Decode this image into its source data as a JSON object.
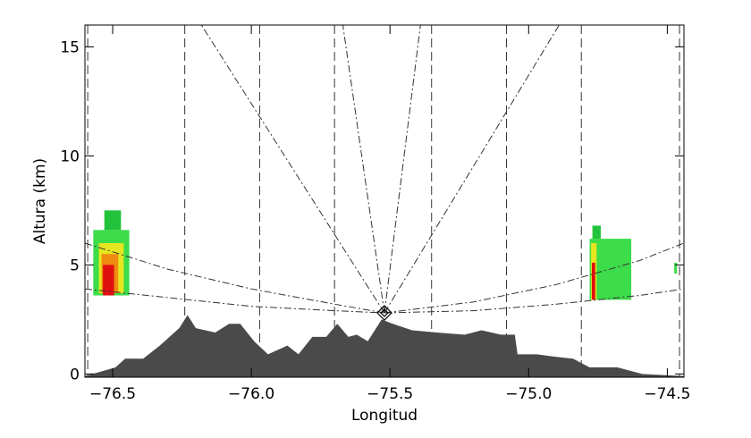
{
  "chart_data": {
    "type": "area",
    "x_label": "Longitud",
    "y_label": "Altura (km)",
    "xlim": [
      -76.6,
      -74.44
    ],
    "ylim": [
      -0.15,
      16
    ],
    "xticks": [
      {
        "value": -76.5,
        "label": "−76.5"
      },
      {
        "value": -76.0,
        "label": "−76.0"
      },
      {
        "value": -75.5,
        "label": "−75.5"
      },
      {
        "value": -75.0,
        "label": "−75.0"
      },
      {
        "value": -74.5,
        "label": "−74.5"
      }
    ],
    "yticks": [
      0,
      5,
      10,
      15
    ],
    "terrain": {
      "color": "#4a4a4a",
      "x": [
        -76.6,
        -76.49,
        -76.455,
        -76.39,
        -76.33,
        -76.26,
        -76.23,
        -76.2,
        -76.13,
        -76.08,
        -76.04,
        -75.99,
        -75.94,
        -75.87,
        -75.83,
        -75.78,
        -75.73,
        -75.69,
        -75.65,
        -75.62,
        -75.58,
        -75.55,
        -75.53,
        -75.49,
        -75.42,
        -75.33,
        -75.23,
        -75.17,
        -75.1,
        -75.05,
        -75.04,
        -74.97,
        -74.91,
        -74.84,
        -74.78,
        -74.68,
        -74.59,
        -74.44
      ],
      "values": [
        -0.1,
        0.3,
        0.7,
        0.7,
        1.3,
        2.1,
        2.7,
        2.1,
        1.9,
        2.3,
        2.3,
        1.5,
        0.9,
        1.3,
        0.9,
        1.7,
        1.7,
        2.3,
        1.7,
        1.8,
        1.5,
        2.1,
        2.5,
        2.3,
        2.0,
        1.9,
        1.8,
        2.0,
        1.8,
        1.8,
        0.9,
        0.9,
        0.8,
        0.7,
        0.3,
        0.3,
        0,
        -0.1
      ]
    },
    "echoes": [
      {
        "x0": -76.57,
        "x1": -76.44,
        "y0": 3.6,
        "y1": 6.6,
        "color": "#3ddc4a"
      },
      {
        "x0": -76.53,
        "x1": -76.47,
        "y0": 6.6,
        "y1": 7.5,
        "color": "#22c23a"
      },
      {
        "x0": -76.55,
        "x1": -76.46,
        "y0": 3.7,
        "y1": 6.0,
        "color": "#e6e620"
      },
      {
        "x0": -76.54,
        "x1": -76.48,
        "y0": 3.7,
        "y1": 5.5,
        "color": "#f08a10"
      },
      {
        "x0": -76.535,
        "x1": -76.495,
        "y0": 3.6,
        "y1": 5.0,
        "color": "#e01010"
      },
      {
        "x0": -74.78,
        "x1": -74.63,
        "y0": 3.4,
        "y1": 6.2,
        "color": "#3ddc4a"
      },
      {
        "x0": -74.77,
        "x1": -74.74,
        "y0": 6.2,
        "y1": 6.8,
        "color": "#22c23a"
      },
      {
        "x0": -74.775,
        "x1": -74.755,
        "y0": 3.4,
        "y1": 6.0,
        "color": "#e6e620"
      },
      {
        "x0": -74.772,
        "x1": -74.76,
        "y0": 3.4,
        "y1": 5.1,
        "color": "#e01010"
      },
      {
        "x0": -74.475,
        "x1": -74.465,
        "y0": 4.6,
        "y1": 5.1,
        "color": "#3ddc4a"
      }
    ],
    "radar": {
      "x": -75.52,
      "y": 2.8
    },
    "beam_top_x": [
      -76.18,
      -75.67,
      -75.39,
      -74.89
    ],
    "elevation_curves": [
      {
        "x": [
          -76.6,
          -76.3,
          -76.0,
          -75.7,
          -75.52
        ],
        "y": [
          6.0,
          4.8,
          3.9,
          3.2,
          2.8
        ]
      },
      {
        "x": [
          -76.6,
          -76.3,
          -76.0,
          -75.7,
          -75.52
        ],
        "y": [
          3.9,
          3.5,
          3.1,
          2.9,
          2.8
        ]
      },
      {
        "x": [
          -75.52,
          -75.2,
          -74.9,
          -74.6,
          -74.44
        ],
        "y": [
          2.8,
          3.3,
          4.1,
          5.2,
          6.0
        ]
      },
      {
        "x": [
          -75.52,
          -75.2,
          -74.9,
          -74.6,
          -74.44
        ],
        "y": [
          2.8,
          2.9,
          3.2,
          3.6,
          3.9
        ]
      }
    ],
    "range_lines_x": [
      -76.59,
      -76.24,
      -75.97,
      -75.7,
      -75.35,
      -75.08,
      -74.81,
      -74.456
    ]
  }
}
